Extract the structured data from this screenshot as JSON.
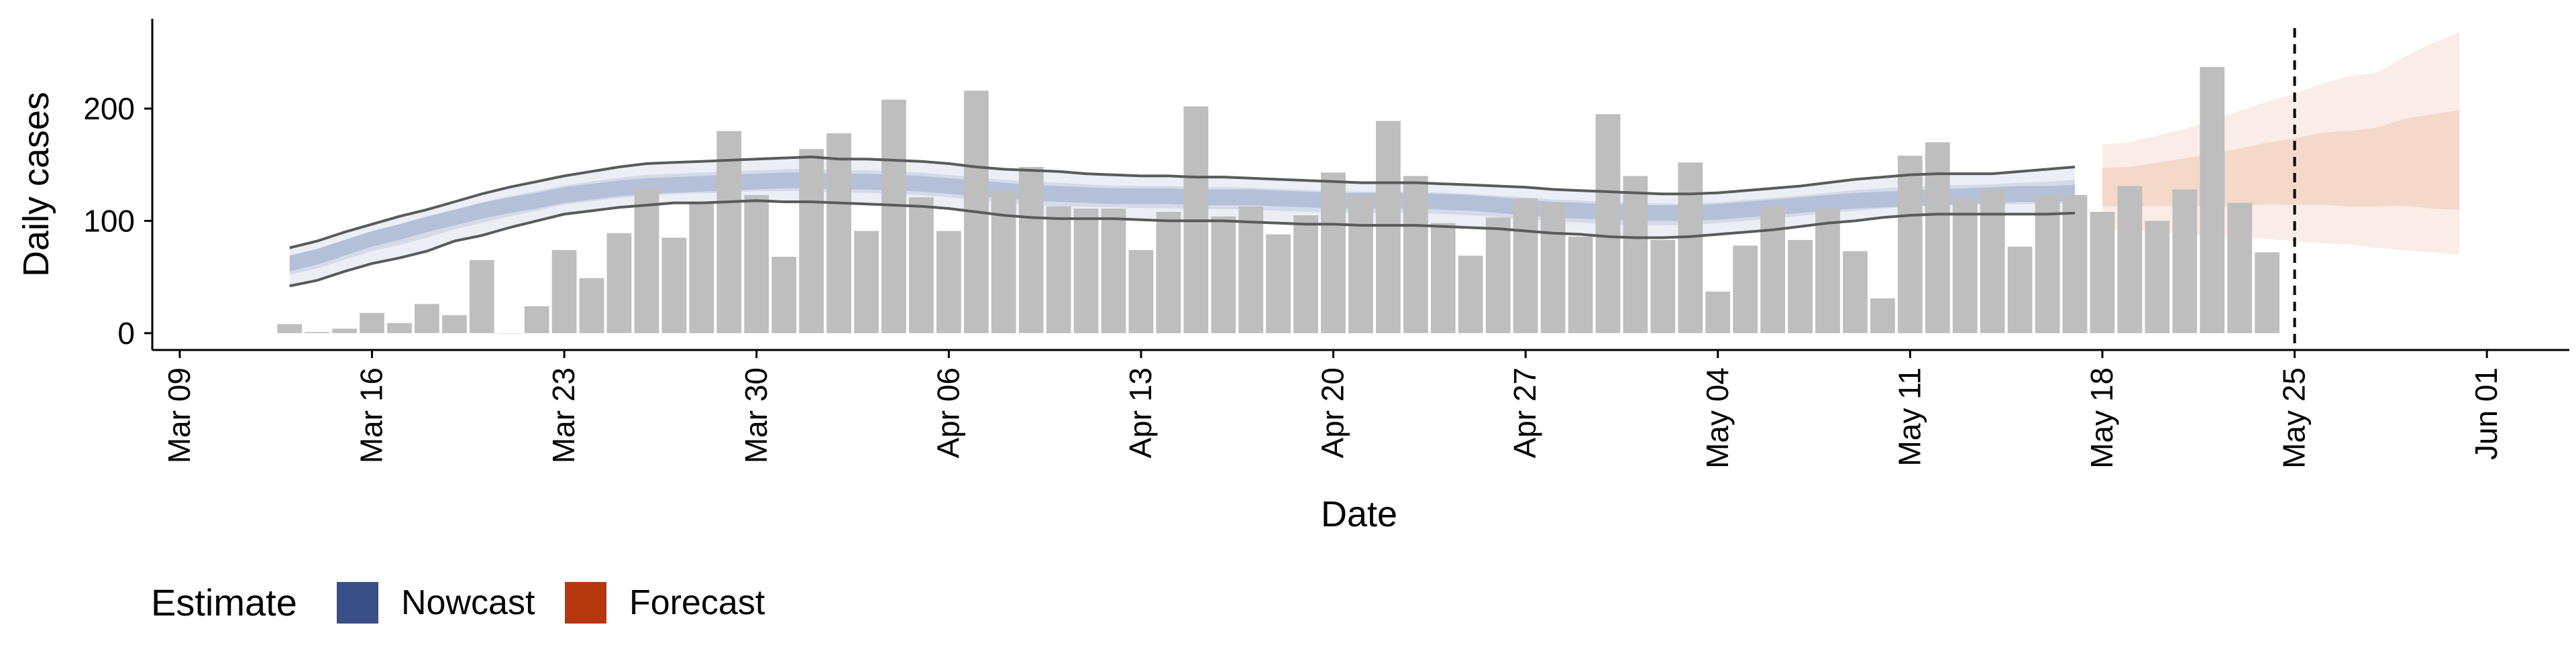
{
  "chart_data": {
    "type": "bar",
    "xlabel": "Date",
    "ylabel": "Daily cases",
    "x_ticks": [
      "Mar 09",
      "Mar 16",
      "Mar 23",
      "Mar 30",
      "Apr 06",
      "Apr 13",
      "Apr 20",
      "Apr 27",
      "May 04",
      "May 11",
      "May 18",
      "May 25",
      "Jun 01"
    ],
    "y_ticks": [
      0,
      100,
      200
    ],
    "ylim": [
      -15,
      280
    ],
    "xlim": [
      "2020-03-08",
      "2020-06-04"
    ],
    "start_date": "2020-03-13",
    "reported_cases": [
      8,
      1,
      4,
      18,
      9,
      26,
      16,
      65,
      0,
      24,
      74,
      49,
      89,
      129,
      85,
      116,
      180,
      123,
      68,
      164,
      178,
      91,
      208,
      121,
      91,
      216,
      127,
      148,
      113,
      111,
      111,
      74,
      108,
      202,
      104,
      113,
      88,
      105,
      143,
      122,
      189,
      140,
      98,
      69,
      103,
      120,
      116,
      86,
      195,
      140,
      83,
      152,
      37,
      78,
      113,
      83,
      111,
      73,
      31,
      158,
      170,
      120,
      128,
      77,
      123,
      123,
      108,
      131,
      100,
      128,
      237,
      116,
      72
    ],
    "nowcast": {
      "end_date": "2020-05-17",
      "median": [
        62,
        68,
        76,
        84,
        90,
        97,
        103,
        109,
        114,
        118,
        123,
        126,
        129,
        131,
        132,
        133,
        134,
        135,
        136,
        136,
        135,
        135,
        134,
        133,
        131,
        129,
        127,
        125,
        124,
        123,
        122,
        122,
        122,
        121,
        121,
        121,
        120,
        119,
        118,
        118,
        118,
        118,
        117,
        116,
        114,
        112,
        110,
        109,
        108,
        107,
        107,
        107,
        108,
        110,
        112,
        114,
        116,
        118,
        119,
        120,
        121,
        122,
        123,
        124,
        124,
        125
      ],
      "lower_90": [
        42,
        47,
        55,
        62,
        67,
        73,
        82,
        87,
        94,
        100,
        106,
        109,
        112,
        114,
        116,
        116,
        117,
        118,
        117,
        117,
        116,
        115,
        114,
        113,
        111,
        108,
        105,
        103,
        102,
        102,
        102,
        101,
        100,
        100,
        100,
        99,
        98,
        97,
        97,
        96,
        96,
        96,
        95,
        94,
        93,
        91,
        89,
        88,
        86,
        85,
        85,
        86,
        88,
        90,
        92,
        95,
        98,
        100,
        103,
        105,
        106,
        106,
        106,
        106,
        106,
        107
      ],
      "upper_90": [
        76,
        82,
        90,
        97,
        104,
        110,
        117,
        124,
        130,
        135,
        140,
        144,
        148,
        151,
        152,
        153,
        154,
        155,
        156,
        157,
        155,
        155,
        154,
        153,
        151,
        148,
        146,
        145,
        144,
        142,
        141,
        140,
        140,
        139,
        139,
        138,
        137,
        136,
        135,
        134,
        134,
        134,
        133,
        132,
        131,
        130,
        128,
        127,
        126,
        125,
        124,
        124,
        125,
        127,
        129,
        131,
        134,
        137,
        139,
        141,
        142,
        142,
        142,
        144,
        146,
        148
      ]
    },
    "forecast": {
      "start_date": "2020-05-18",
      "end_date": "2020-05-31",
      "median": [
        130,
        130,
        132,
        134,
        135,
        137,
        140,
        141,
        143,
        140,
        143,
        146,
        143,
        142
      ],
      "lower_90": [
        92,
        92,
        90,
        88,
        86,
        85,
        84,
        82,
        80,
        79,
        76,
        74,
        72,
        70
      ],
      "upper_90": [
        168,
        170,
        176,
        182,
        190,
        198,
        206,
        213,
        222,
        229,
        232,
        246,
        258,
        268
      ]
    },
    "reference_line_date": "2020-05-25",
    "legend": {
      "title": "Estimate",
      "position": "bottom-left",
      "items": [
        {
          "label": "Nowcast",
          "color": "#3a4e88"
        },
        {
          "label": "Forecast",
          "color": "#b5380e"
        }
      ]
    },
    "colors": {
      "bars": "#bebebe",
      "nowcast_band": "#8e9fc5",
      "nowcast_outer_line": "#5a5a5a",
      "forecast_band": "#e9a88c"
    },
    "grid": false
  }
}
